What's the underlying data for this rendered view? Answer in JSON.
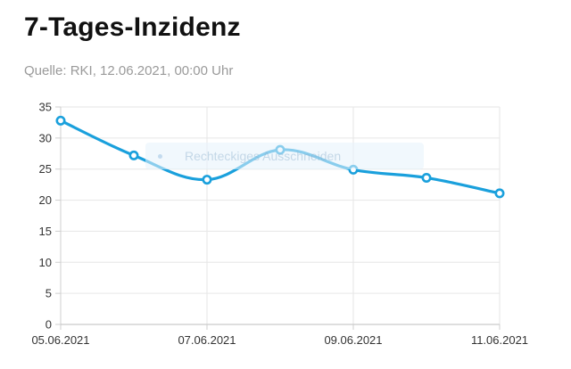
{
  "header": {
    "title": "7-Tages-Inzidenz",
    "source": "Quelle: RKI, 12.06.2021, 00:00 Uhr"
  },
  "overlay": {
    "label": "Rechteckiges Ausschneiden"
  },
  "chart_data": {
    "type": "line",
    "title": "7-Tages-Inzidenz",
    "xlabel": "",
    "ylabel": "",
    "categories": [
      "05.06.2021",
      "06.06.2021",
      "07.06.2021",
      "08.06.2021",
      "09.06.2021",
      "10.06.2021",
      "11.06.2021"
    ],
    "x_tick_labels": [
      "05.06.2021",
      "07.06.2021",
      "09.06.2021",
      "11.06.2021"
    ],
    "y_ticks": [
      0,
      5,
      10,
      15,
      20,
      25,
      30,
      35
    ],
    "ylim": [
      0,
      35
    ],
    "grid": true,
    "line_color": "#1aa0dc",
    "series": [
      {
        "values": [
          32.8,
          27.2,
          23.3,
          28.1,
          24.9,
          23.6,
          21.1
        ]
      }
    ]
  }
}
